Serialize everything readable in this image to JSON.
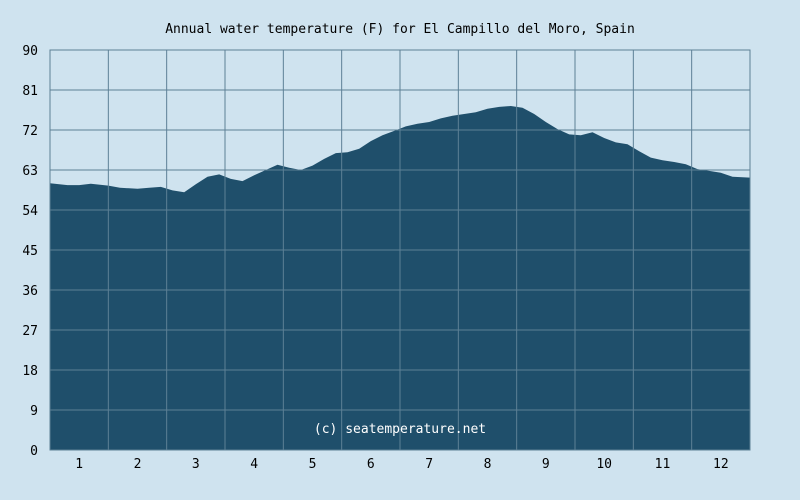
{
  "chart_data": {
    "type": "area",
    "title": "Annual water temperature (F) for El Campillo del Moro, Spain",
    "xlabel": "",
    "ylabel": "",
    "ylim": [
      0,
      90
    ],
    "xlim": [
      0.5,
      12.5
    ],
    "yticks": [
      "0",
      "9",
      "18",
      "27",
      "36",
      "45",
      "54",
      "63",
      "72",
      "81",
      "90"
    ],
    "xticks": [
      "1",
      "2",
      "3",
      "4",
      "5",
      "6",
      "7",
      "8",
      "9",
      "10",
      "11",
      "12"
    ],
    "grid": true,
    "fill_color": "#1f4f6b",
    "background": "#cfe3ef",
    "grid_color": "#5d8096",
    "credit": "(c) seatemperature.net",
    "x": [
      0.5,
      0.8,
      1.0,
      1.2,
      1.5,
      1.7,
      2.0,
      2.2,
      2.4,
      2.6,
      2.8,
      3.0,
      3.2,
      3.4,
      3.6,
      3.8,
      4.0,
      4.2,
      4.4,
      4.6,
      4.8,
      5.0,
      5.2,
      5.4,
      5.6,
      5.8,
      6.0,
      6.2,
      6.4,
      6.6,
      6.8,
      7.0,
      7.2,
      7.4,
      7.6,
      7.8,
      8.0,
      8.2,
      8.4,
      8.6,
      8.8,
      9.0,
      9.2,
      9.4,
      9.6,
      9.8,
      10.0,
      10.2,
      10.4,
      10.6,
      10.8,
      11.0,
      11.2,
      11.4,
      11.6,
      11.8,
      12.0,
      12.2,
      12.5
    ],
    "y": [
      60.0,
      59.6,
      59.6,
      59.9,
      59.5,
      59.0,
      58.8,
      59.0,
      59.2,
      58.4,
      58.0,
      59.8,
      61.5,
      62.0,
      61.0,
      60.5,
      61.8,
      63.0,
      64.2,
      63.5,
      63.0,
      64.0,
      65.5,
      66.8,
      67.0,
      67.8,
      69.5,
      70.8,
      71.8,
      72.8,
      73.4,
      73.8,
      74.6,
      75.2,
      75.6,
      76.0,
      76.8,
      77.2,
      77.4,
      77.0,
      75.6,
      73.8,
      72.2,
      71.0,
      70.8,
      71.5,
      70.2,
      69.2,
      68.8,
      67.2,
      65.8,
      65.2,
      64.8,
      64.3,
      63.2,
      62.8,
      62.4,
      61.5,
      61.3
    ]
  }
}
